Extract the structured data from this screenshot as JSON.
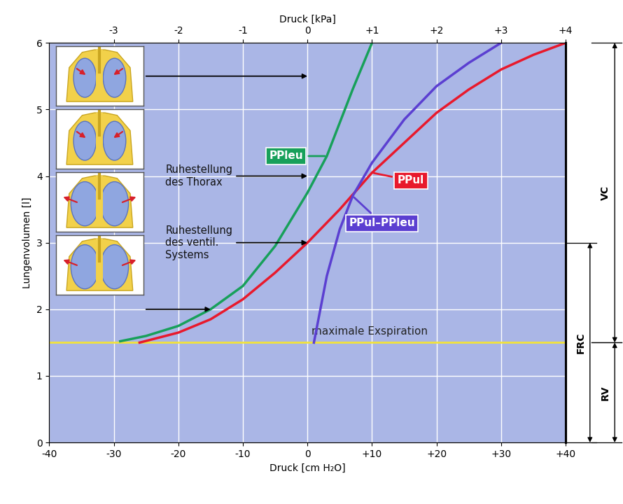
{
  "chart_data": {
    "type": "line",
    "x_label": "Druck [cm H₂O]",
    "y_label": "Lungenvolumen [l]",
    "x2_label": "Druck [kPa]",
    "xlim": [
      -40,
      40
    ],
    "xticks": [
      -40,
      -30,
      -20,
      -10,
      0,
      {
        "value": 10,
        "label": "+10"
      },
      {
        "value": 20,
        "label": "+20"
      },
      {
        "value": 30,
        "label": "+30"
      },
      {
        "value": 40,
        "label": "+40"
      }
    ],
    "x2lim": [
      -4,
      4
    ],
    "x2ticks": [
      -3,
      -2,
      -1,
      0,
      {
        "value": 1,
        "label": "+1"
      },
      {
        "value": 2,
        "label": "+2"
      },
      {
        "value": 3,
        "label": "+3"
      },
      {
        "value": 4,
        "label": "+4"
      }
    ],
    "ylim": [
      0,
      6
    ],
    "yticks": [
      0,
      1,
      2,
      3,
      4,
      5,
      6
    ],
    "grid": true,
    "series": [
      {
        "name": "PPleu",
        "color": "#17a05a",
        "x": [
          -29,
          -25,
          -20,
          -15,
          -10,
          -5,
          0,
          3,
          5,
          7,
          10
        ],
        "values": [
          1.52,
          1.6,
          1.75,
          2.0,
          2.35,
          2.95,
          3.75,
          4.3,
          4.8,
          5.3,
          6.0
        ]
      },
      {
        "name": "PPul",
        "color": "#e8192c",
        "x": [
          -26,
          -20,
          -15,
          -10,
          -5,
          0,
          5,
          10,
          15,
          20,
          25,
          30,
          35,
          40
        ],
        "values": [
          1.5,
          1.65,
          1.85,
          2.15,
          2.55,
          3.0,
          3.5,
          4.05,
          4.5,
          4.95,
          5.3,
          5.6,
          5.82,
          6.0
        ]
      },
      {
        "name": "PPul–PPleu",
        "color": "#5b3fd1",
        "x": [
          1,
          2,
          3,
          5,
          7,
          10,
          15,
          20,
          25,
          30
        ],
        "values": [
          1.5,
          2.0,
          2.5,
          3.2,
          3.7,
          4.2,
          4.85,
          5.35,
          5.7,
          6.0
        ]
      }
    ],
    "reference_line": {
      "text": "maximale Exspiration",
      "value": 1.5,
      "color": "#f2e33a"
    },
    "annotations": [
      {
        "text": "Ruhestellung\ndes Thorax",
        "x": 0,
        "y": 4
      },
      {
        "text": "Ruhestellung\ndes ventil.\nSystems",
        "x": 0,
        "y": 3
      }
    ],
    "icon_arrows": [
      {
        "x": 0,
        "y": 5.5
      },
      {
        "x": -15,
        "y": 2
      }
    ],
    "volumes": [
      {
        "name": "VC",
        "from": 1.5,
        "to": 6
      },
      {
        "name": "FRC",
        "from": 0,
        "to": 3
      },
      {
        "name": "RV",
        "from": 0,
        "to": 1.5
      }
    ]
  }
}
